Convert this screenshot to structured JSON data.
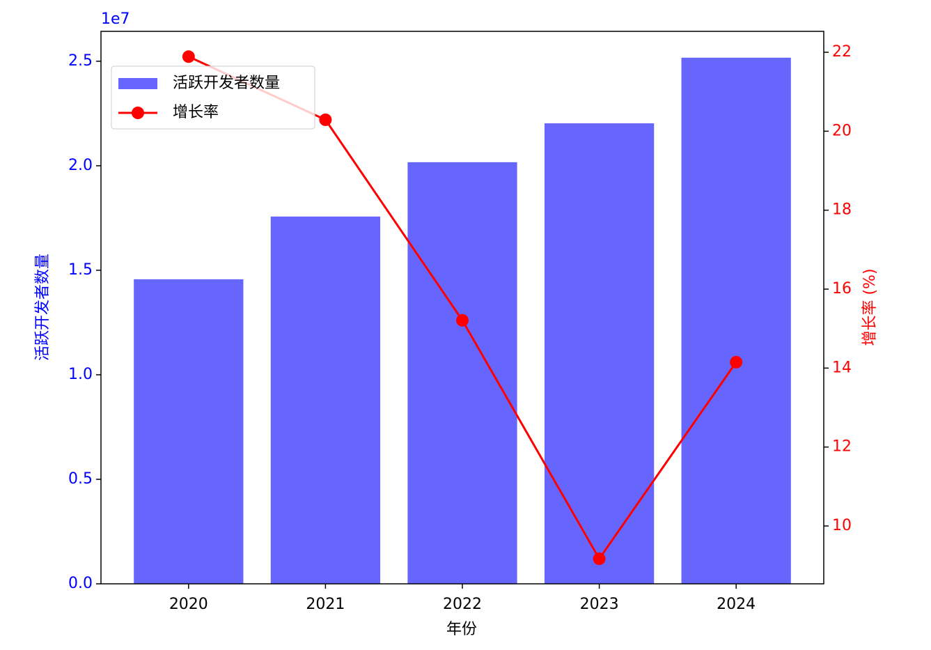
{
  "chart_data": {
    "type": "bar",
    "categories": [
      "2020",
      "2021",
      "2022",
      "2023",
      "2024"
    ],
    "xlabel": "年份",
    "ylabel": "活跃开发者数量",
    "y2label": "增长率 (%)",
    "y_offset_label": "1e7",
    "ylim": [
      0,
      26430000
    ],
    "yticks": [
      {
        "value": 0,
        "label": "0.0"
      },
      {
        "value": 5000000,
        "label": "0.5"
      },
      {
        "value": 10000000,
        "label": "1.0"
      },
      {
        "value": 15000000,
        "label": "1.5"
      },
      {
        "value": 20000000,
        "label": "2.0"
      },
      {
        "value": 25000000,
        "label": "2.5"
      }
    ],
    "y2lim": [
      8.535,
      22.53
    ],
    "y2ticks": [
      10,
      12,
      14,
      16,
      18,
      20,
      22
    ],
    "legend": "upper left",
    "series": [
      {
        "name": "活跃开发者数量",
        "type": "bar",
        "color": "#6666ff",
        "values": [
          14570000,
          17570000,
          20170000,
          22030000,
          25170000
        ]
      },
      {
        "name": "增长率",
        "type": "line",
        "axis": "y2",
        "color": "#ff0000",
        "values": [
          21.89,
          20.29,
          15.21,
          9.17,
          14.15
        ]
      }
    ]
  }
}
